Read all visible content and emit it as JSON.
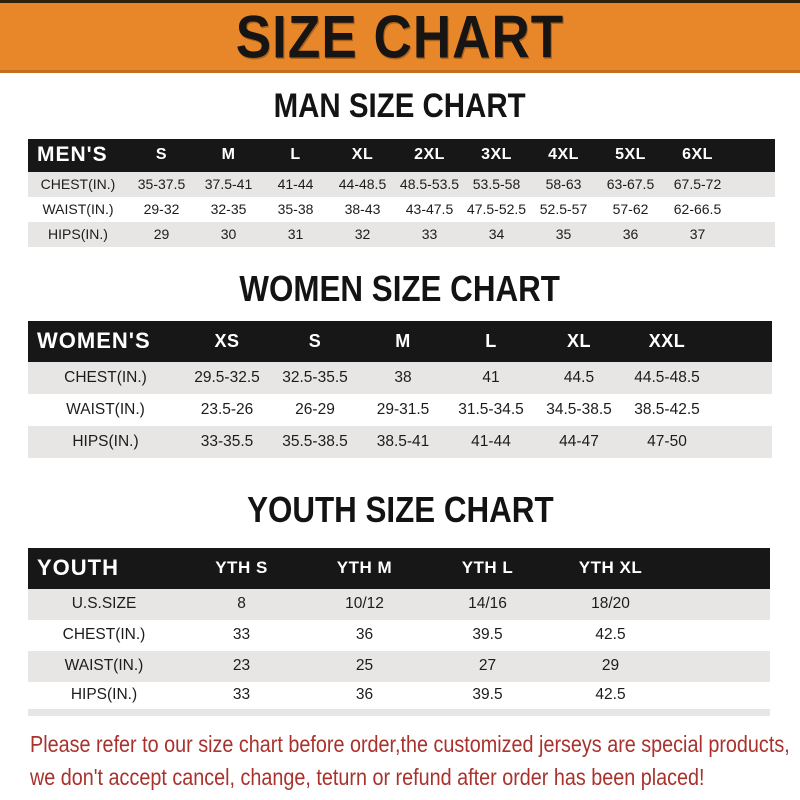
{
  "banner": {
    "title": "SIZE CHART"
  },
  "colors": {
    "banner_orange": "#E8872A",
    "header_bar_black": "#171717",
    "row_gray": "#E7E6E4",
    "notice_red": "#A9322D"
  },
  "sections": [
    {
      "heading": "MAN SIZE CHART",
      "header_label": "MEN'S",
      "columns": [
        "S",
        "M",
        "L",
        "XL",
        "2XL",
        "3XL",
        "4XL",
        "5XL",
        "6XL"
      ],
      "rows": [
        {
          "label": "CHEST(IN.)",
          "values": [
            "35-37.5",
            "37.5-41",
            "41-44",
            "44-48.5",
            "48.5-53.5",
            "53.5-58",
            "58-63",
            "63-67.5",
            "67.5-72"
          ]
        },
        {
          "label": "WAIST(IN.)",
          "values": [
            "29-32",
            "32-35",
            "35-38",
            "38-43",
            "43-47.5",
            "47.5-52.5",
            "52.5-57",
            "57-62",
            "62-66.5"
          ]
        },
        {
          "label": "HIPS(IN.)",
          "values": [
            "29",
            "30",
            "31",
            "32",
            "33",
            "34",
            "35",
            "36",
            "37"
          ]
        }
      ]
    },
    {
      "heading": "WOMEN SIZE CHART",
      "header_label": "WOMEN'S",
      "columns": [
        "XS",
        "S",
        "M",
        "L",
        "XL",
        "XXL"
      ],
      "rows": [
        {
          "label": "CHEST(IN.)",
          "values": [
            "29.5-32.5",
            "32.5-35.5",
            "38",
            "41",
            "44.5",
            "44.5-48.5"
          ]
        },
        {
          "label": "WAIST(IN.)",
          "values": [
            "23.5-26",
            "26-29",
            "29-31.5",
            "31.5-34.5",
            "34.5-38.5",
            "38.5-42.5"
          ]
        },
        {
          "label": "HIPS(IN.)",
          "values": [
            "33-35.5",
            "35.5-38.5",
            "38.5-41",
            "41-44",
            "44-47",
            "47-50"
          ]
        }
      ]
    },
    {
      "heading": "YOUTH SIZE CHART",
      "header_label": "YOUTH",
      "columns": [
        "YTH S",
        "YTH M",
        "YTH L",
        "YTH XL"
      ],
      "rows": [
        {
          "label": "U.S.SIZE",
          "values": [
            "8",
            "10/12",
            "14/16",
            "18/20"
          ]
        },
        {
          "label": "CHEST(IN.)",
          "values": [
            "33",
            "36",
            "39.5",
            "42.5"
          ]
        },
        {
          "label": "WAIST(IN.)",
          "values": [
            "23",
            "25",
            "27",
            "29"
          ]
        },
        {
          "label": "HIPS(IN.)",
          "values": [
            "33",
            "36",
            "39.5",
            "42.5"
          ]
        }
      ]
    }
  ],
  "notice": {
    "line1": "Please refer to our size chart before order,the customized jerseys are special products,",
    "line2": "we don't accept cancel, change, teturn or refund after order has been placed!"
  }
}
